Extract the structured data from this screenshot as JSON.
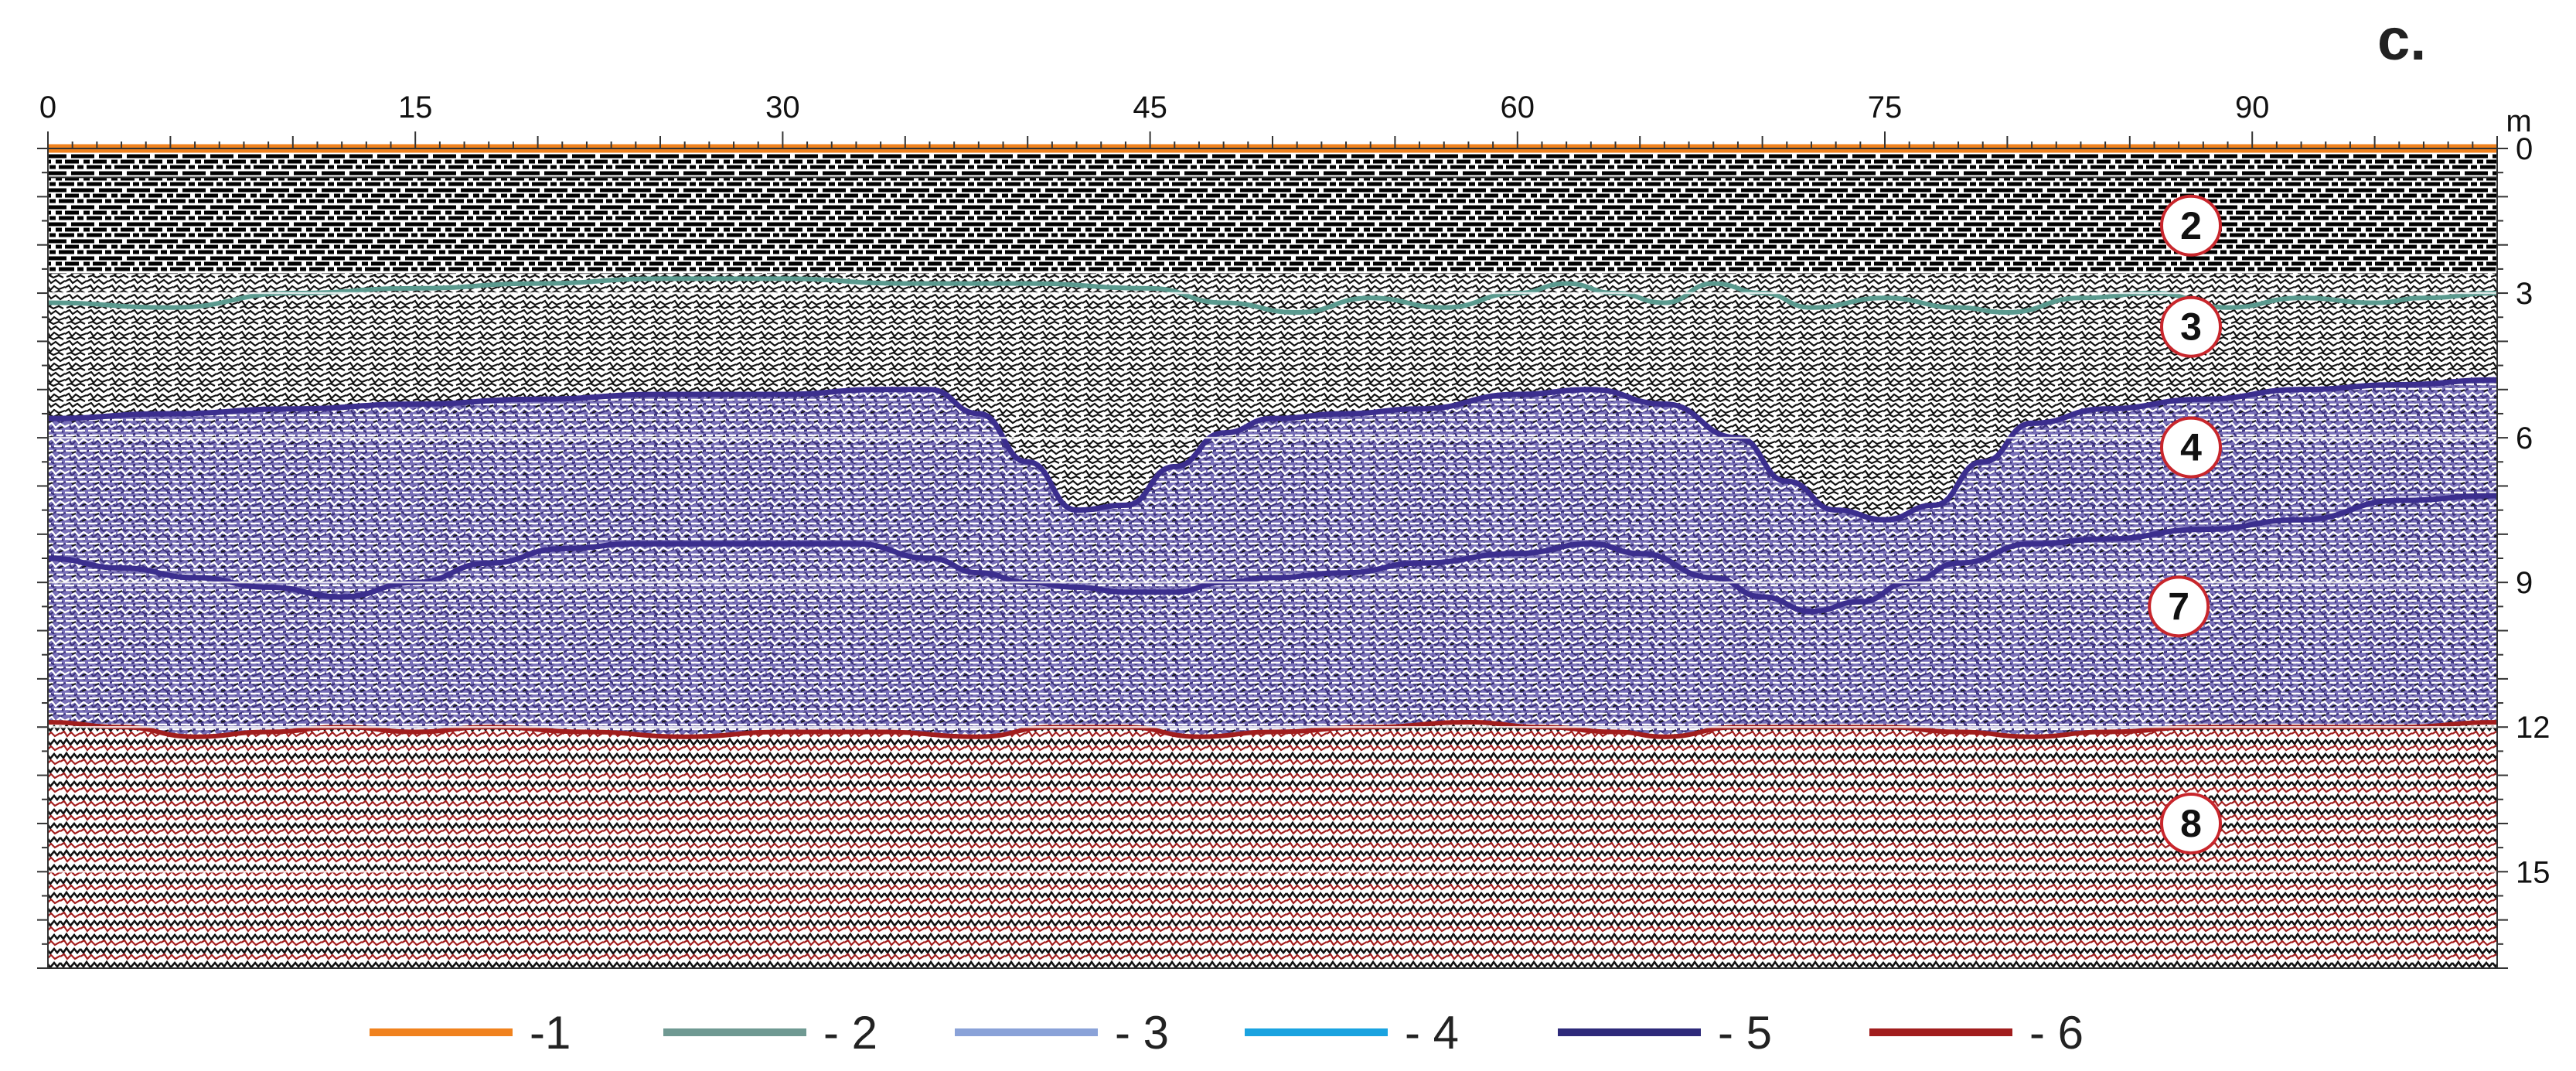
{
  "panel_label": "c.",
  "x_axis": {
    "unit": "m",
    "ticks": [
      "0",
      "15",
      "30",
      "45",
      "60",
      "75",
      "90"
    ],
    "range": [
      0,
      100
    ]
  },
  "y_axis": {
    "ticks": [
      "0",
      "3",
      "6",
      "9",
      "12",
      "15"
    ],
    "range": [
      0,
      17
    ]
  },
  "layers": [
    {
      "label": "2",
      "x": 87.5,
      "depth": 1.6
    },
    {
      "label": "3",
      "x": 87.5,
      "depth": 3.7
    },
    {
      "label": "4",
      "x": 87.5,
      "depth": 6.2
    },
    {
      "label": "7",
      "x": 87.0,
      "depth": 9.5
    },
    {
      "label": "8",
      "x": 87.5,
      "depth": 14.0
    }
  ],
  "boundaries": {
    "surface": {
      "color": "#f0821e",
      "points": [
        [
          0,
          0
        ],
        [
          100,
          0
        ]
      ]
    },
    "teal": {
      "color": "#5b9a8f",
      "points": [
        [
          0,
          3.2
        ],
        [
          5,
          3.3
        ],
        [
          10,
          3.0
        ],
        [
          15,
          2.9
        ],
        [
          20,
          2.8
        ],
        [
          25,
          2.7
        ],
        [
          30,
          2.7
        ],
        [
          35,
          2.8
        ],
        [
          40,
          2.8
        ],
        [
          45,
          2.9
        ],
        [
          48,
          3.2
        ],
        [
          51,
          3.4
        ],
        [
          54,
          3.1
        ],
        [
          57,
          3.3
        ],
        [
          60,
          3.0
        ],
        [
          62,
          2.8
        ],
        [
          64,
          3.0
        ],
        [
          66,
          3.2
        ],
        [
          68,
          2.8
        ],
        [
          70,
          3.0
        ],
        [
          72,
          3.3
        ],
        [
          75,
          3.1
        ],
        [
          78,
          3.3
        ],
        [
          80,
          3.4
        ],
        [
          83,
          3.1
        ],
        [
          86,
          3.0
        ],
        [
          89,
          3.3
        ],
        [
          92,
          3.1
        ],
        [
          95,
          3.2
        ],
        [
          97,
          3.1
        ],
        [
          100,
          3.0
        ]
      ]
    },
    "purple_top": {
      "color": "#3b2e8e",
      "points": [
        [
          0,
          5.6
        ],
        [
          5,
          5.5
        ],
        [
          10,
          5.4
        ],
        [
          15,
          5.3
        ],
        [
          20,
          5.2
        ],
        [
          25,
          5.1
        ],
        [
          30,
          5.1
        ],
        [
          34,
          5.0
        ],
        [
          36,
          5.0
        ],
        [
          38,
          5.5
        ],
        [
          40,
          6.5
        ],
        [
          42,
          7.5
        ],
        [
          44,
          7.4
        ],
        [
          46,
          6.6
        ],
        [
          48,
          5.9
        ],
        [
          50,
          5.6
        ],
        [
          53,
          5.5
        ],
        [
          56,
          5.4
        ],
        [
          60,
          5.1
        ],
        [
          63,
          5.0
        ],
        [
          66,
          5.3
        ],
        [
          69,
          6.0
        ],
        [
          71,
          6.9
        ],
        [
          73,
          7.5
        ],
        [
          75,
          7.7
        ],
        [
          77,
          7.4
        ],
        [
          79,
          6.5
        ],
        [
          81,
          5.7
        ],
        [
          84,
          5.4
        ],
        [
          88,
          5.2
        ],
        [
          92,
          5.0
        ],
        [
          96,
          4.9
        ],
        [
          100,
          4.8
        ]
      ]
    },
    "purple_bottom": {
      "color": "#3b2e8e",
      "points": [
        [
          0,
          8.5
        ],
        [
          3,
          8.7
        ],
        [
          6,
          8.9
        ],
        [
          9,
          9.1
        ],
        [
          12,
          9.3
        ],
        [
          15,
          9.0
        ],
        [
          18,
          8.6
        ],
        [
          21,
          8.3
        ],
        [
          24,
          8.2
        ],
        [
          27,
          8.2
        ],
        [
          30,
          8.2
        ],
        [
          33,
          8.2
        ],
        [
          36,
          8.5
        ],
        [
          38,
          8.8
        ],
        [
          40,
          9.0
        ],
        [
          42,
          9.1
        ],
        [
          44,
          9.2
        ],
        [
          46,
          9.2
        ],
        [
          48,
          9.0
        ],
        [
          50,
          8.9
        ],
        [
          53,
          8.8
        ],
        [
          56,
          8.6
        ],
        [
          60,
          8.4
        ],
        [
          63,
          8.2
        ],
        [
          65,
          8.4
        ],
        [
          68,
          8.9
        ],
        [
          70,
          9.3
        ],
        [
          72,
          9.6
        ],
        [
          74,
          9.4
        ],
        [
          76,
          9.0
        ],
        [
          78,
          8.6
        ],
        [
          81,
          8.2
        ],
        [
          84,
          8.1
        ],
        [
          88,
          7.9
        ],
        [
          92,
          7.7
        ],
        [
          96,
          7.3
        ],
        [
          100,
          7.2
        ]
      ]
    },
    "red": {
      "color": "#a11d1d",
      "points": [
        [
          0,
          11.9
        ],
        [
          3,
          12.0
        ],
        [
          6,
          12.2
        ],
        [
          9,
          12.1
        ],
        [
          12,
          12.0
        ],
        [
          15,
          12.1
        ],
        [
          18,
          12.0
        ],
        [
          22,
          12.1
        ],
        [
          26,
          12.2
        ],
        [
          30,
          12.1
        ],
        [
          34,
          12.1
        ],
        [
          38,
          12.2
        ],
        [
          41,
          12.0
        ],
        [
          44,
          12.0
        ],
        [
          47,
          12.2
        ],
        [
          50,
          12.1
        ],
        [
          54,
          12.0
        ],
        [
          58,
          11.9
        ],
        [
          61,
          12.0
        ],
        [
          64,
          12.1
        ],
        [
          66,
          12.2
        ],
        [
          69,
          12.0
        ],
        [
          72,
          12.0
        ],
        [
          75,
          12.0
        ],
        [
          78,
          12.1
        ],
        [
          81,
          12.2
        ],
        [
          84,
          12.1
        ],
        [
          88,
          12.0
        ],
        [
          92,
          12.0
        ],
        [
          96,
          12.0
        ],
        [
          100,
          11.9
        ]
      ]
    }
  },
  "legend": [
    {
      "label": "-1",
      "color": "#f0821e"
    },
    {
      "label": "- 2",
      "color": "#6f9992"
    },
    {
      "label": "- 3",
      "color": "#8aa2d8"
    },
    {
      "label": "- 4",
      "color": "#1aa3e0"
    },
    {
      "label": "- 5",
      "color": "#2e2a7a"
    },
    {
      "label": "- 6",
      "color": "#a11d1d"
    }
  ]
}
